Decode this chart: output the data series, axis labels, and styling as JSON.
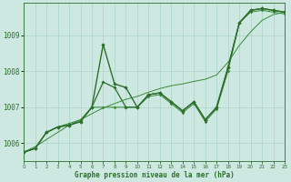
{
  "xlabel": "Graphe pression niveau de la mer (hPa)",
  "background_color": "#cce8e0",
  "grid_color": "#b0d8cc",
  "line_color_main": "#2d6e2d",
  "line_color_thin": "#3a8a3a",
  "x_values": [
    0,
    1,
    2,
    3,
    4,
    5,
    6,
    7,
    8,
    9,
    10,
    11,
    12,
    13,
    14,
    15,
    16,
    17,
    18,
    19,
    20,
    21,
    22,
    23
  ],
  "series1": [
    1005.75,
    1005.85,
    1006.3,
    1006.45,
    1006.5,
    1006.6,
    1007.0,
    1008.75,
    1007.65,
    1007.55,
    1007.0,
    1007.35,
    1007.4,
    1007.15,
    1006.9,
    1007.15,
    1006.65,
    1007.0,
    1008.1,
    1009.35,
    1009.7,
    1009.75,
    1009.7,
    1009.65
  ],
  "series2": [
    1005.75,
    1005.85,
    1006.3,
    1006.45,
    1006.5,
    1006.6,
    1007.0,
    1007.7,
    1007.55,
    1007.0,
    1007.0,
    1007.35,
    1007.4,
    1007.15,
    1006.9,
    1007.15,
    1006.65,
    1007.0,
    1008.1,
    1009.35,
    1009.7,
    1009.75,
    1009.7,
    1009.65
  ],
  "series3": [
    1005.75,
    1005.85,
    1006.3,
    1006.45,
    1006.55,
    1006.65,
    1007.0,
    1007.0,
    1007.0,
    1007.0,
    1007.0,
    1007.3,
    1007.35,
    1007.1,
    1006.85,
    1007.1,
    1006.6,
    1006.95,
    1008.0,
    1009.35,
    1009.65,
    1009.7,
    1009.65,
    1009.6
  ],
  "series_smooth": [
    1005.75,
    1005.9,
    1006.1,
    1006.3,
    1006.5,
    1006.65,
    1006.82,
    1006.98,
    1007.1,
    1007.22,
    1007.3,
    1007.42,
    1007.52,
    1007.6,
    1007.65,
    1007.72,
    1007.78,
    1007.9,
    1008.25,
    1008.72,
    1009.1,
    1009.42,
    1009.58,
    1009.65
  ],
  "ylim": [
    1005.5,
    1009.9
  ],
  "yticks": [
    1006,
    1007,
    1008,
    1009
  ],
  "xlim": [
    0,
    23
  ]
}
